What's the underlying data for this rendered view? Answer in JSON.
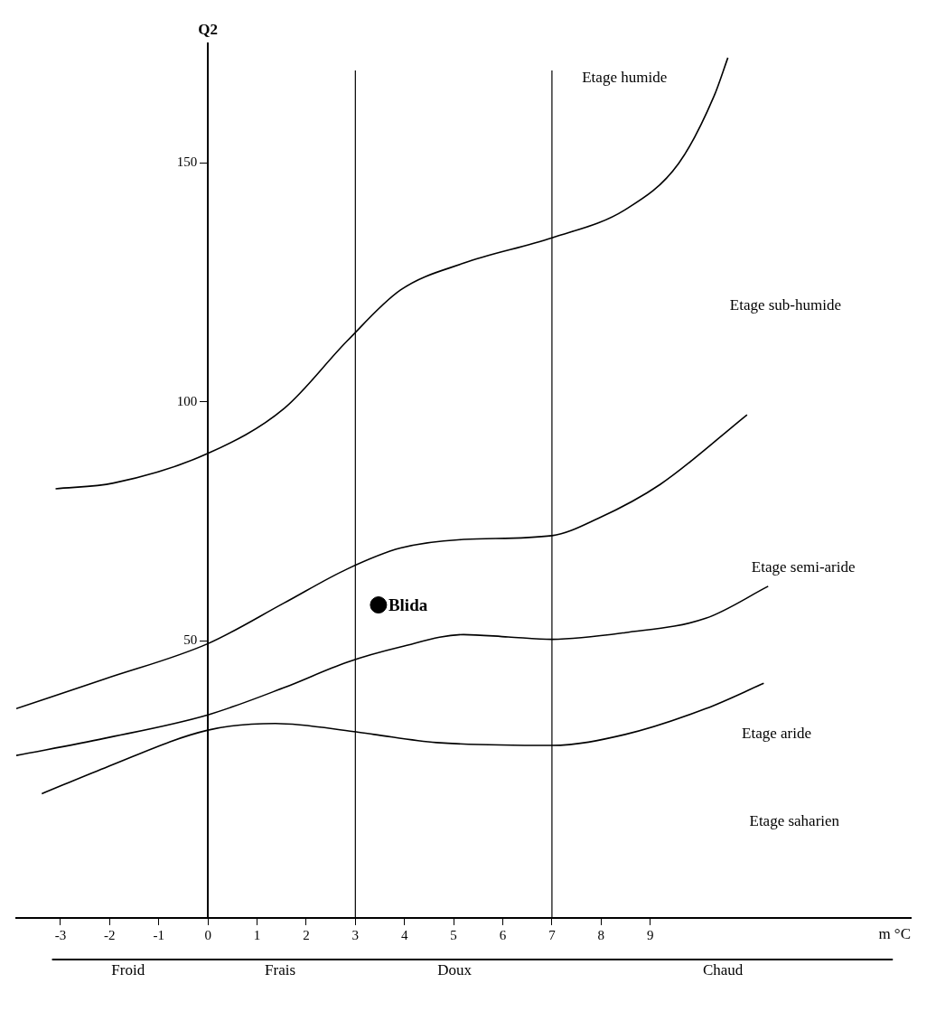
{
  "chart_data": {
    "type": "line",
    "xlabel": "m °C",
    "ylabel": "Q2",
    "xlim": [
      -3.9,
      14.3
    ],
    "ylim": [
      -8,
      175
    ],
    "xticks": [
      -3,
      -2,
      -1,
      0,
      1,
      2,
      3,
      4,
      5,
      6,
      7,
      8,
      9
    ],
    "yticks": [
      50,
      100,
      150
    ],
    "grid": false,
    "legend": false,
    "line_style": "solid",
    "series": [
      {
        "color": "#000000",
        "x": [
          -3.1,
          -1.92,
          0,
          1.55,
          2.83,
          3.92,
          5.2,
          7.0,
          8.49,
          9.58,
          10.3,
          10.58
        ],
        "values": [
          81.8,
          83,
          89.2,
          98.6,
          112.7,
          123.4,
          129,
          134.3,
          140.2,
          149.9,
          164,
          172
        ]
      },
      {
        "color": "#000000",
        "x": [
          -3.9,
          -2.1,
          0,
          1.55,
          2.83,
          3.92,
          5.2,
          7,
          7.94,
          9.2,
          10.97
        ],
        "values": [
          35.8,
          42,
          49.4,
          57.9,
          65,
          69.4,
          71.2,
          72,
          75.6,
          82.7,
          97.3
        ]
      },
      {
        "color": "#000000",
        "x": [
          -3.9,
          -2.1,
          0,
          1.55,
          2.83,
          3.92,
          5.2,
          6.11,
          7,
          8.49,
          10.13,
          11.4
        ],
        "values": [
          26,
          29.6,
          34.5,
          40.2,
          45.5,
          48.7,
          51.3,
          50.8,
          50.3,
          51.7,
          54.7,
          61.4
        ]
      },
      {
        "color": "#000000",
        "x": [
          -3.38,
          -2.1,
          0,
          1.37,
          2.97,
          3.38,
          4.65,
          7,
          8.49,
          10.13,
          11.31
        ],
        "values": [
          18,
          23.4,
          31.3,
          32.7,
          31,
          30.4,
          28.7,
          28.1,
          30.4,
          35.8,
          41.1
        ]
      },
      {
        "type": "scatter",
        "name": "Blida",
        "color": "#000000",
        "x": [
          3.47
        ],
        "values": [
          57.5
        ]
      }
    ],
    "ref_lines": [
      {
        "axis": "x",
        "value": 3
      },
      {
        "axis": "x",
        "value": 7
      }
    ],
    "annotations": [
      "Etage humide",
      "Etage sub-humide",
      "Etage semi-aride",
      "Etage aride",
      "Etage saharien",
      "Froid",
      "Frais",
      "Doux",
      "Chaud"
    ]
  }
}
